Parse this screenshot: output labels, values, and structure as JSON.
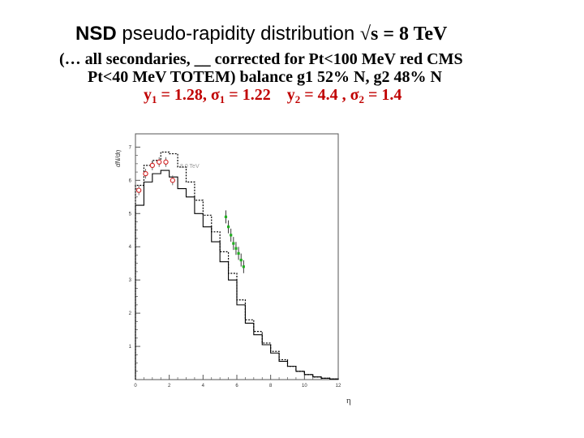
{
  "title": {
    "bold": "NSD",
    "main": "pseudo-rapidity distribution",
    "sqrt": "√",
    "energy": "s = 8 TeV"
  },
  "subtitle": {
    "line1": "(… all secondaries, __ corrected for Pt<100 MeV red CMS",
    "line2_a": "Pt<40 MeV TOTEM) balance  g1 52% N, g2 48% N",
    "line3": {
      "y1_sym": "y",
      "y1_sub": "1",
      "y1_val": " = 1.28, ",
      "s1_sym": "σ",
      "s1_sub": "1",
      "s1_val": " = 1.22",
      "y2_sym": "y",
      "y2_sub": "2",
      "y2_val": " = 4.4 , ",
      "s2_sym": "σ",
      "s2_sub": "2",
      "s2_val": " = 1.4"
    }
  },
  "chart_data": {
    "type": "line",
    "ylabel": "dN/dη",
    "xlabel": "η",
    "annotation": "8.0 TeV",
    "xlim": [
      0,
      12
    ],
    "ylim": [
      0,
      7.4
    ],
    "xticks": [
      "0",
      "2",
      "4",
      "6",
      "8",
      "10",
      "12"
    ],
    "yticks": [
      "1",
      "2",
      "3",
      "4",
      "5",
      "6",
      "7"
    ],
    "series": [
      {
        "style": "solid",
        "color": "#000000",
        "x": [
          0,
          0.5,
          1.0,
          1.5,
          2.0,
          2.5,
          3.0,
          3.5,
          4.0,
          4.5,
          5.0,
          5.5,
          6.0,
          6.5,
          7.0,
          7.5,
          8.0,
          8.5,
          9.0,
          9.5,
          10.0,
          10.5,
          11.0,
          11.5
        ],
        "y": [
          5.25,
          5.95,
          6.2,
          6.3,
          6.1,
          5.75,
          5.5,
          5.0,
          4.6,
          4.15,
          3.55,
          3.0,
          2.25,
          1.7,
          1.35,
          1.05,
          0.8,
          0.55,
          0.4,
          0.25,
          0.15,
          0.08,
          0.04,
          0.02
        ]
      },
      {
        "style": "dotted",
        "color": "#000000",
        "x": [
          0,
          0.5,
          1.0,
          1.5,
          2.0,
          2.5,
          3.0,
          3.5,
          4.0,
          4.5,
          5.0,
          5.5,
          6.0,
          6.5,
          7.0,
          7.5,
          8.0,
          8.5,
          9.0,
          9.5,
          10.0,
          10.5,
          11.0,
          11.5
        ],
        "y": [
          5.85,
          6.45,
          6.6,
          6.85,
          6.8,
          6.4,
          5.95,
          5.4,
          4.95,
          4.45,
          3.85,
          3.2,
          2.4,
          1.8,
          1.45,
          1.1,
          0.85,
          0.6,
          0.4,
          0.25,
          0.15,
          0.08,
          0.04,
          0.02
        ]
      },
      {
        "name": "CMS",
        "style": "markers",
        "color": "#d02020",
        "x": [
          0.2,
          0.6,
          1.0,
          1.4,
          1.8,
          2.2
        ],
        "y": [
          5.7,
          6.2,
          6.45,
          6.55,
          6.55,
          6.0
        ]
      },
      {
        "name": "TOTEM",
        "style": "markers",
        "color": "#20b020",
        "x": [
          5.35,
          5.5,
          5.65,
          5.8,
          5.95,
          6.1,
          6.25,
          6.4
        ],
        "y": [
          4.9,
          4.6,
          4.35,
          4.1,
          3.95,
          3.8,
          3.6,
          3.4
        ]
      }
    ]
  }
}
